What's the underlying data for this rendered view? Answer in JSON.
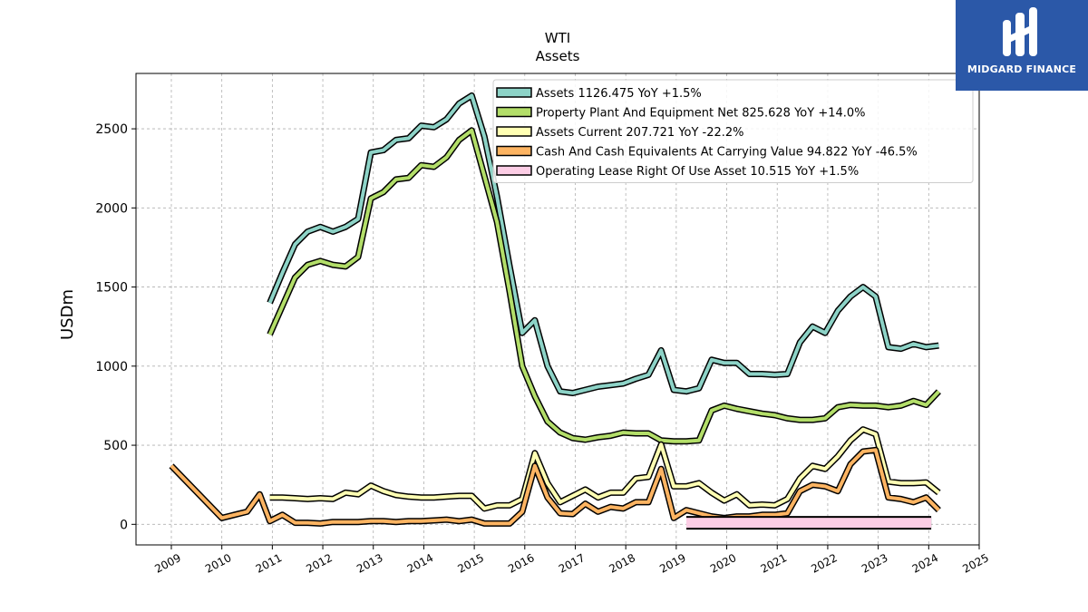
{
  "logo": {
    "text": "MIDGARD FINANCE",
    "color": "#2b58a8"
  },
  "chart_data": {
    "type": "line",
    "title": "WTI",
    "subtitle": "Assets",
    "xlabel": "",
    "ylabel": "USDm",
    "xlim": [
      2008.3,
      2025.0
    ],
    "ylim": [
      -130,
      2850
    ],
    "x_ticks": [
      "2009",
      "2010",
      "2011",
      "2012",
      "2013",
      "2014",
      "2015",
      "2016",
      "2017",
      "2018",
      "2019",
      "2020",
      "2021",
      "2022",
      "2023",
      "2024",
      "2025"
    ],
    "y_ticks": [
      0,
      500,
      1000,
      1500,
      2000,
      2500
    ],
    "grid": true,
    "legend_position": "top-right",
    "series": [
      {
        "name": "Assets",
        "legend": "Assets  1126.475 YoY +1.5%",
        "color": "#8dd3c7",
        "x": [
          2010.95,
          2011.2,
          2011.45,
          2011.7,
          2011.95,
          2012.2,
          2012.45,
          2012.7,
          2012.95,
          2013.2,
          2013.45,
          2013.7,
          2013.95,
          2014.2,
          2014.45,
          2014.7,
          2014.95,
          2015.2,
          2015.45,
          2015.7,
          2015.95,
          2016.2,
          2016.45,
          2016.7,
          2016.95,
          2017.2,
          2017.45,
          2017.7,
          2017.95,
          2018.2,
          2018.45,
          2018.7,
          2018.95,
          2019.2,
          2019.45,
          2019.7,
          2019.95,
          2020.2,
          2020.45,
          2020.7,
          2020.95,
          2021.2,
          2021.45,
          2021.7,
          2021.95,
          2022.2,
          2022.45,
          2022.7,
          2022.95,
          2023.2,
          2023.45,
          2023.7,
          2023.95,
          2024.2
        ],
        "y": [
          1400,
          1590,
          1770,
          1850,
          1880,
          1850,
          1880,
          1930,
          2350,
          2365,
          2430,
          2440,
          2520,
          2510,
          2560,
          2660,
          2710,
          2450,
          2070,
          1630,
          1210,
          1290,
          1000,
          840,
          830,
          850,
          870,
          880,
          890,
          920,
          945,
          1100,
          850,
          840,
          860,
          1040,
          1020,
          1020,
          950,
          950,
          945,
          950,
          1150,
          1250,
          1210,
          1350,
          1440,
          1500,
          1440,
          1120,
          1110,
          1140,
          1120,
          1130
        ]
      },
      {
        "name": "Property Plant And Equipment Net",
        "legend": "Property Plant And Equipment Net  825.628 YoY +14.0%",
        "color": "#b3de69",
        "x": [
          2010.95,
          2011.2,
          2011.45,
          2011.7,
          2011.95,
          2012.2,
          2012.45,
          2012.7,
          2012.95,
          2013.2,
          2013.45,
          2013.7,
          2013.95,
          2014.2,
          2014.45,
          2014.7,
          2014.95,
          2015.2,
          2015.45,
          2015.7,
          2015.95,
          2016.2,
          2016.45,
          2016.7,
          2016.95,
          2017.2,
          2017.45,
          2017.7,
          2017.95,
          2018.2,
          2018.45,
          2018.7,
          2018.95,
          2019.2,
          2019.45,
          2019.7,
          2019.95,
          2020.2,
          2020.45,
          2020.7,
          2020.95,
          2021.2,
          2021.45,
          2021.7,
          2021.95,
          2022.2,
          2022.45,
          2022.7,
          2022.95,
          2023.2,
          2023.45,
          2023.7,
          2023.95,
          2024.2
        ],
        "y": [
          1200,
          1380,
          1560,
          1640,
          1665,
          1640,
          1630,
          1690,
          2060,
          2100,
          2180,
          2190,
          2270,
          2260,
          2320,
          2430,
          2490,
          2200,
          1910,
          1470,
          1000,
          810,
          650,
          580,
          545,
          535,
          550,
          560,
          580,
          575,
          575,
          530,
          525,
          525,
          530,
          720,
          750,
          730,
          715,
          700,
          690,
          670,
          660,
          660,
          670,
          740,
          755,
          750,
          750,
          740,
          750,
          780,
          755,
          840
        ]
      },
      {
        "name": "Assets Current",
        "legend": "Assets Current  207.721 YoY -22.2%",
        "color": "#ffffb3",
        "x": [
          2010.95,
          2011.2,
          2011.45,
          2011.7,
          2011.95,
          2012.2,
          2012.45,
          2012.7,
          2012.95,
          2013.2,
          2013.45,
          2013.7,
          2013.95,
          2014.2,
          2014.45,
          2014.7,
          2014.95,
          2015.2,
          2015.45,
          2015.7,
          2015.95,
          2016.2,
          2016.45,
          2016.7,
          2016.95,
          2017.2,
          2017.45,
          2017.7,
          2017.95,
          2018.2,
          2018.45,
          2018.7,
          2018.95,
          2019.2,
          2019.45,
          2019.7,
          2019.95,
          2020.2,
          2020.45,
          2020.7,
          2020.95,
          2021.2,
          2021.45,
          2021.7,
          2021.95,
          2022.2,
          2022.45,
          2022.7,
          2022.95,
          2023.2,
          2023.45,
          2023.7,
          2023.95,
          2024.2
        ],
        "y": [
          170,
          170,
          165,
          160,
          165,
          160,
          200,
          190,
          245,
          210,
          185,
          175,
          170,
          170,
          175,
          180,
          180,
          100,
          120,
          120,
          160,
          450,
          260,
          140,
          180,
          220,
          170,
          200,
          200,
          290,
          300,
          505,
          240,
          240,
          260,
          200,
          150,
          190,
          120,
          125,
          120,
          160,
          290,
          370,
          350,
          430,
          530,
          600,
          570,
          270,
          260,
          260,
          265,
          200
        ]
      },
      {
        "name": "Cash And Cash Equivalents At Carrying Value",
        "legend": "Cash And Cash Equivalents At Carrying Value  94.822 YoY -46.5%",
        "color": "#fdb462",
        "x": [
          2009.0,
          2010.0,
          2010.25,
          2010.5,
          2010.75,
          2010.95,
          2011.2,
          2011.45,
          2011.7,
          2011.95,
          2012.2,
          2012.45,
          2012.7,
          2012.95,
          2013.2,
          2013.45,
          2013.7,
          2013.95,
          2014.2,
          2014.45,
          2014.7,
          2014.95,
          2015.2,
          2015.45,
          2015.7,
          2015.95,
          2016.2,
          2016.45,
          2016.7,
          2016.95,
          2017.2,
          2017.45,
          2017.7,
          2017.95,
          2018.2,
          2018.45,
          2018.7,
          2018.95,
          2019.2,
          2019.45,
          2019.7,
          2019.95,
          2020.2,
          2020.45,
          2020.7,
          2020.95,
          2021.2,
          2021.45,
          2021.7,
          2021.95,
          2022.2,
          2022.45,
          2022.7,
          2022.95,
          2023.2,
          2023.45,
          2023.7,
          2023.95,
          2024.2
        ],
        "y": [
          370,
          40,
          60,
          80,
          190,
          20,
          60,
          10,
          10,
          5,
          15,
          15,
          15,
          20,
          20,
          15,
          20,
          20,
          25,
          30,
          20,
          30,
          5,
          5,
          5,
          80,
          370,
          170,
          70,
          65,
          130,
          80,
          110,
          100,
          140,
          140,
          350,
          40,
          90,
          70,
          50,
          40,
          50,
          50,
          60,
          60,
          70,
          210,
          250,
          240,
          210,
          380,
          460,
          470,
          170,
          160,
          140,
          170,
          90
        ]
      },
      {
        "name": "Operating Lease Right Of Use Asset",
        "legend": "Operating Lease Right Of Use Asset  10.515 YoY +1.5%",
        "color": "#fccde5",
        "x": [
          2019.2,
          2024.05
        ],
        "y": [
          10,
          10
        ],
        "width": 17
      }
    ]
  }
}
